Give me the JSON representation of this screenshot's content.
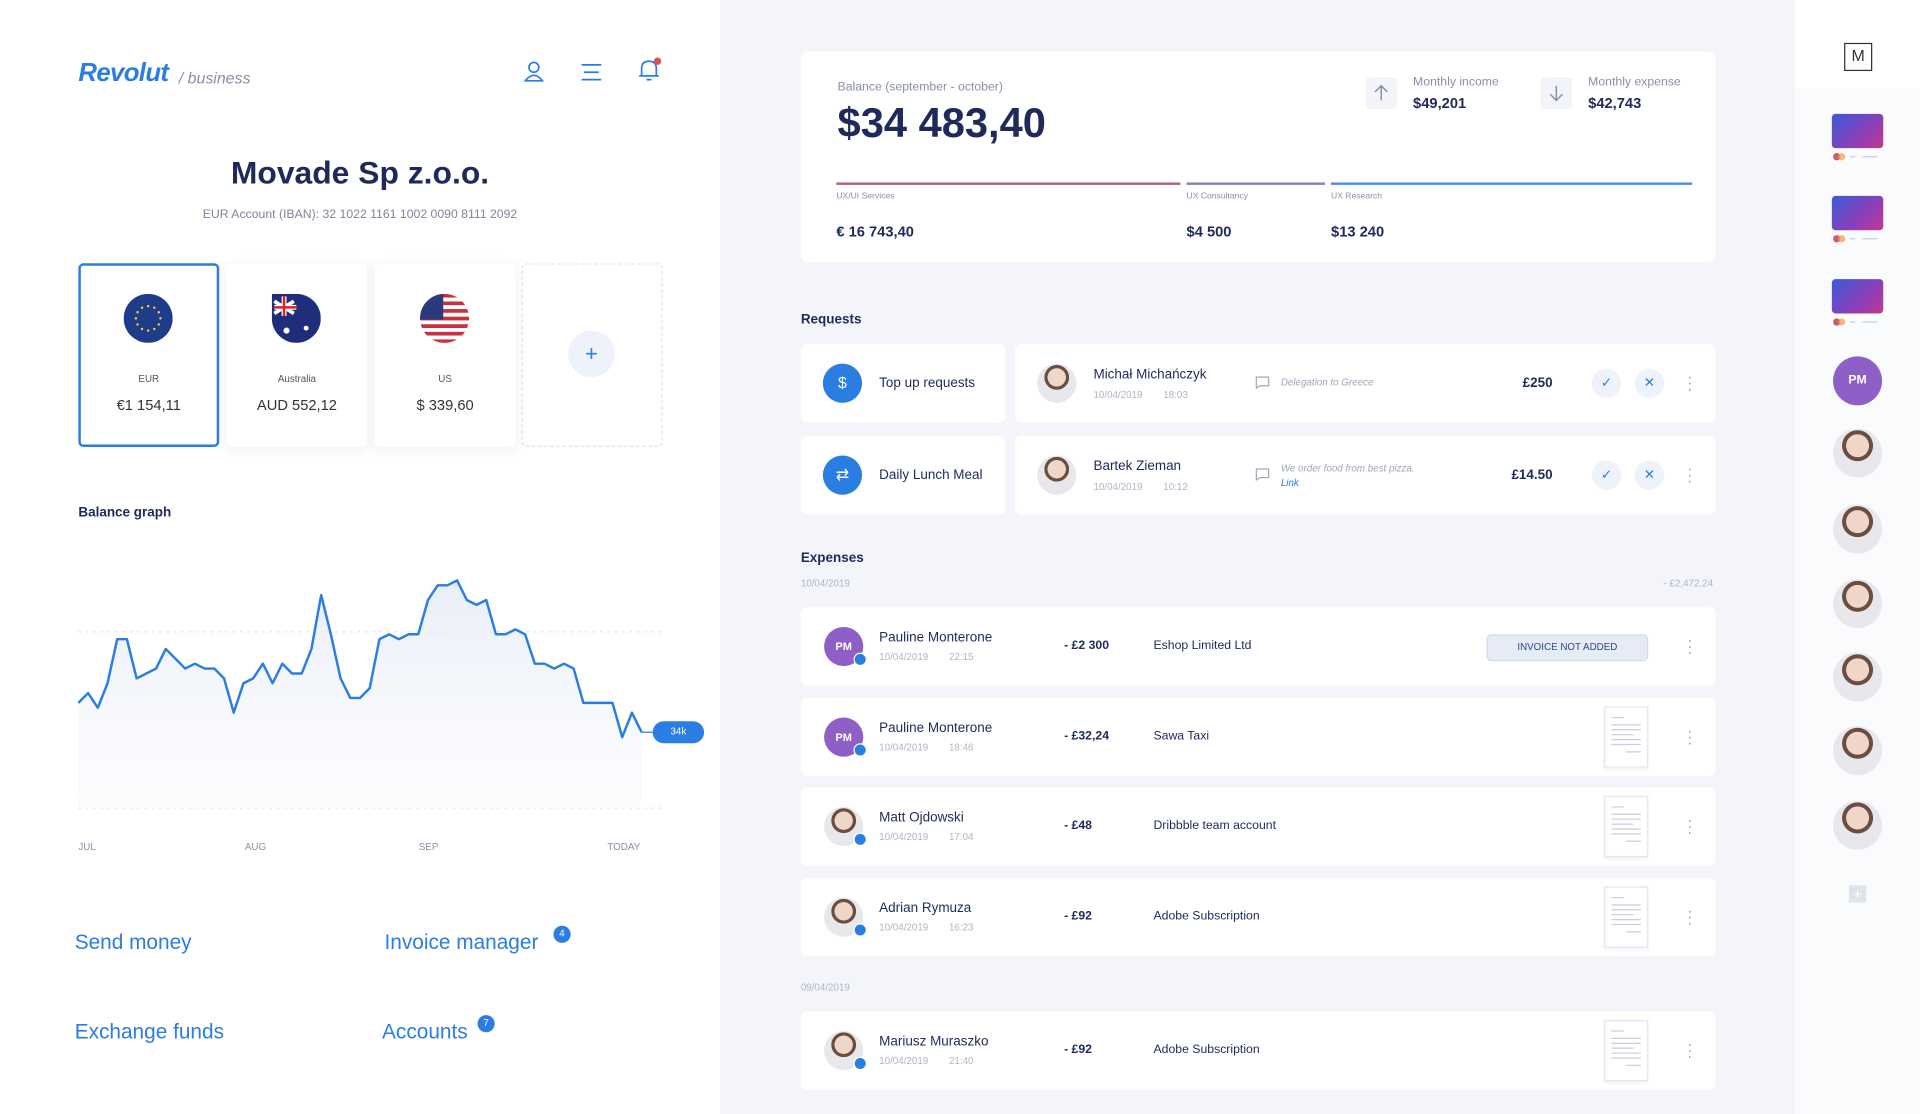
{
  "header": {
    "logo": "Revolut",
    "sub": "/ business"
  },
  "company": {
    "name": "Movade Sp z.o.o.",
    "iban": "EUR Account (IBAN): 32 1022 1161 1002 0090 8111 2092"
  },
  "accounts": [
    {
      "code": "EUR",
      "amount": "€1 154,11"
    },
    {
      "code": "Australia",
      "amount": "AUD 552,12"
    },
    {
      "code": "US",
      "amount": "$ 339,60"
    }
  ],
  "graph": {
    "title": "Balance graph",
    "values": [
      40,
      42,
      39,
      44,
      53,
      53,
      45,
      46,
      47,
      51,
      49,
      47,
      48,
      47,
      47,
      45,
      38,
      44,
      45,
      48,
      44,
      48,
      46,
      46,
      51,
      62,
      54,
      45,
      41,
      41,
      43,
      53,
      54,
      53,
      54,
      54,
      61,
      64,
      64,
      65,
      61,
      60,
      61,
      54,
      54,
      55,
      54,
      48,
      48,
      47,
      48,
      47,
      40,
      40,
      40,
      40,
      33,
      38,
      34
    ],
    "last_label": "34k",
    "x_labels": [
      "JUL",
      "AUG",
      "SEP",
      "TODAY"
    ]
  },
  "links": [
    {
      "label": "Send money"
    },
    {
      "label": "Invoice manager",
      "badge": 4
    },
    {
      "label": "Exchange funds"
    },
    {
      "label": "Accounts",
      "badge": 7
    }
  ],
  "balance": {
    "label": "Balance (september - october)",
    "amount": "$34 483,40",
    "income_label": "Monthly income",
    "income": "$49,201",
    "expense_label": "Monthly expense",
    "expense": "$42,743",
    "breakdown": [
      {
        "name": "UX/UI Services",
        "amount": "€ 16 743,40",
        "color": "#a8677a"
      },
      {
        "name": "UX Consultancy",
        "amount": "$4 500",
        "color": "#8c7fb8"
      },
      {
        "name": "UX Research",
        "amount": "$13 240",
        "color": "#4a90e2"
      }
    ]
  },
  "requests": {
    "title": "Requests",
    "items": [
      {
        "title": "Top up requests",
        "person": "Michał Michańczyk",
        "date": "10/04/2019",
        "time": "18:03",
        "note": "Delegation to Greece",
        "amount": "£250"
      },
      {
        "title": "Daily Lunch Meal",
        "person": "Bartek Zieman",
        "date": "10/04/2019",
        "time": "10:12",
        "note": "We order food from best pizza.",
        "link": "Link",
        "amount": "£14.50"
      }
    ]
  },
  "expenses": {
    "title": "Expenses",
    "groups": [
      {
        "date": "10/04/2019",
        "total": "- £2,472.24",
        "items": [
          {
            "name": "Pauline Monterone",
            "initials": "PM",
            "date": "10/04/2019",
            "time": "22:15",
            "amount": "- £2 300",
            "merchant": "Eshop Limited Ltd",
            "status": "INVOICE NOT ADDED"
          },
          {
            "name": "Pauline Monterone",
            "initials": "PM",
            "date": "10/04/2019",
            "time": "18:46",
            "amount": "- £32,24",
            "merchant": "Sawa Taxi"
          },
          {
            "name": "Matt Ojdowski",
            "date": "10/04/2019",
            "time": "17:04",
            "amount": "- £48",
            "merchant": "Dribbble team account"
          },
          {
            "name": "Adrian Rymuza",
            "date": "10/04/2019",
            "time": "16:23",
            "amount": "- £92",
            "merchant": "Adobe Subscription"
          }
        ]
      },
      {
        "date": "09/04/2019",
        "items": [
          {
            "name": "Mariusz Muraszko",
            "date": "10/04/2019",
            "time": "21:40",
            "amount": "- £92",
            "merchant": "Adobe Subscription"
          }
        ]
      }
    ]
  },
  "sidebar": {
    "logo": "M",
    "avatar": "PM"
  }
}
